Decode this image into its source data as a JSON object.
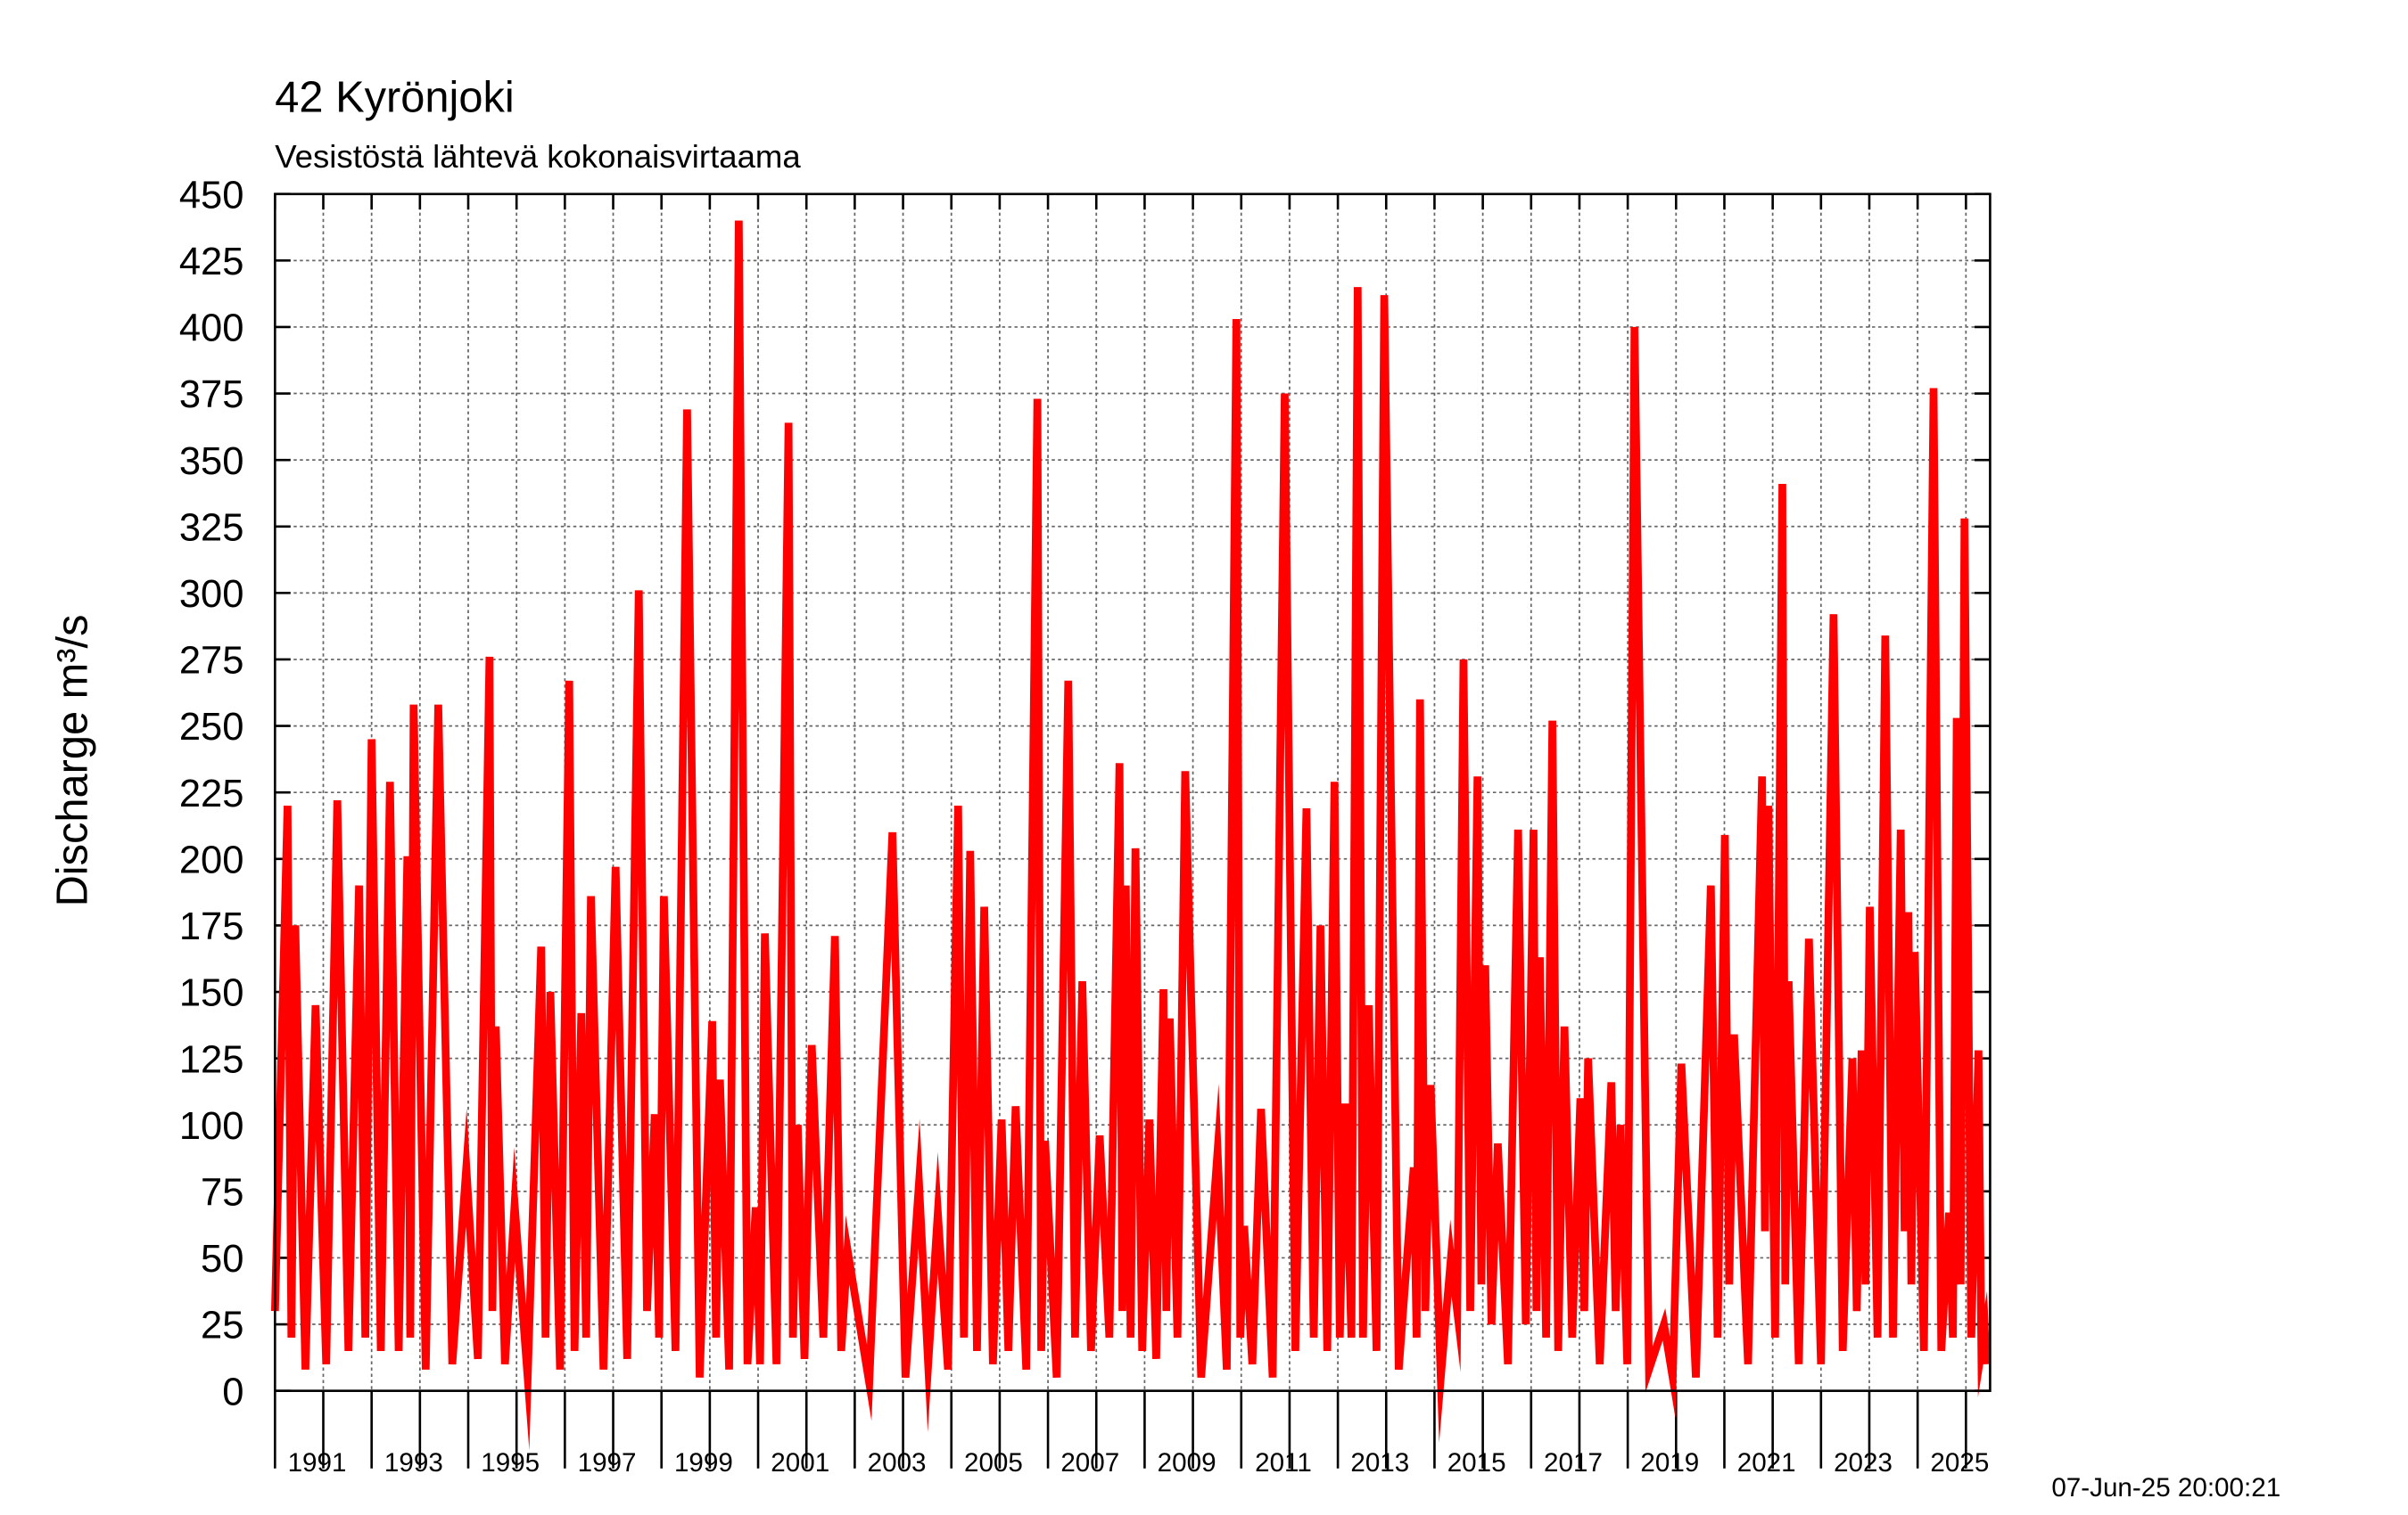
{
  "chart_data": {
    "type": "line",
    "title": "42 Kyrönjoki",
    "subtitle": "Vesistöstä lähtevä kokonaisvirtaama",
    "y_label": "Discharge m³/s",
    "timestamp": "07-Jun-25 20:00:21",
    "xlim": [
      1990,
      2025.5
    ],
    "ylim": [
      0,
      450
    ],
    "xticks": [
      1991,
      1993,
      1995,
      1997,
      1999,
      2001,
      2003,
      2005,
      2007,
      2009,
      2011,
      2013,
      2015,
      2017,
      2019,
      2021,
      2023,
      2025
    ],
    "xminor": [
      1990,
      1992,
      1994,
      1996,
      1998,
      2000,
      2002,
      2004,
      2006,
      2008,
      2010,
      2012,
      2014,
      2016,
      2018,
      2020,
      2022,
      2024
    ],
    "yticks": [
      0,
      25,
      50,
      75,
      100,
      125,
      150,
      175,
      200,
      225,
      250,
      275,
      300,
      325,
      350,
      375,
      400,
      425,
      450
    ],
    "grid": true,
    "x": [
      1990.0,
      1990.26,
      1990.34,
      1990.42,
      1990.63,
      1990.84,
      1991.06,
      1991.29,
      1991.52,
      1991.74,
      1991.87,
      1992.0,
      1992.19,
      1992.38,
      1992.56,
      1992.74,
      1992.8,
      1992.87,
      1993.12,
      1993.38,
      1993.67,
      1993.96,
      1994.2,
      1994.44,
      1994.5,
      1994.57,
      1994.76,
      1994.96,
      1995.23,
      1995.51,
      1995.6,
      1995.7,
      1995.9,
      1996.09,
      1996.2,
      1996.34,
      1996.44,
      1996.54,
      1996.8,
      1997.05,
      1997.29,
      1997.53,
      1997.7,
      1997.86,
      1997.95,
      1998.05,
      1998.29,
      1998.53,
      1998.79,
      1999.05,
      1999.13,
      1999.21,
      1999.4,
      1999.6,
      1999.78,
      1999.95,
      2000.04,
      2000.14,
      2000.38,
      2000.63,
      2000.72,
      2000.82,
      2000.96,
      2001.11,
      2001.35,
      2001.59,
      2001.72,
      2001.85,
      2002.3,
      2002.78,
      2003.05,
      2003.33,
      2003.52,
      2003.72,
      2003.93,
      2004.14,
      2004.26,
      2004.39,
      2004.53,
      2004.68,
      2004.86,
      2005.04,
      2005.18,
      2005.33,
      2005.55,
      2005.78,
      2005.86,
      2005.94,
      2006.18,
      2006.42,
      2006.56,
      2006.71,
      2006.89,
      2007.07,
      2007.27,
      2007.48,
      2007.54,
      2007.61,
      2007.71,
      2007.81,
      2007.95,
      2008.1,
      2008.24,
      2008.39,
      2008.45,
      2008.52,
      2008.68,
      2008.84,
      2009.17,
      2009.51,
      2009.7,
      2009.9,
      2009.98,
      2010.06,
      2010.23,
      2010.41,
      2010.65,
      2010.9,
      2011.12,
      2011.35,
      2011.5,
      2011.64,
      2011.78,
      2011.93,
      2012.04,
      2012.15,
      2012.28,
      2012.41,
      2012.52,
      2012.64,
      2012.8,
      2012.96,
      2013.26,
      2013.57,
      2013.63,
      2013.7,
      2013.81,
      2013.92,
      2014.13,
      2014.34,
      2014.47,
      2014.6,
      2014.74,
      2014.89,
      2014.97,
      2015.05,
      2015.18,
      2015.31,
      2015.52,
      2015.73,
      2015.89,
      2016.05,
      2016.11,
      2016.18,
      2016.31,
      2016.44,
      2016.56,
      2016.69,
      2016.85,
      2017.02,
      2017.1,
      2017.18,
      2017.42,
      2017.66,
      2017.75,
      2017.85,
      2017.99,
      2018.14,
      2018.44,
      2018.75,
      2018.93,
      2019.11,
      2019.41,
      2019.72,
      2019.86,
      2020.01,
      2020.1,
      2020.2,
      2020.49,
      2020.78,
      2020.84,
      2020.91,
      2021.05,
      2021.2,
      2021.26,
      2021.33,
      2021.54,
      2021.75,
      2022.0,
      2022.26,
      2022.45,
      2022.65,
      2022.74,
      2022.84,
      2022.92,
      2023.01,
      2023.17,
      2023.33,
      2023.49,
      2023.65,
      2023.73,
      2023.81,
      2023.87,
      2023.94,
      2024.13,
      2024.33,
      2024.49,
      2024.65,
      2024.73,
      2024.81,
      2024.89,
      2024.97,
      2025.11,
      2025.26,
      2025.32,
      2025.39,
      2025.42
    ],
    "series": [
      {
        "color": "#ff0000",
        "values": [
          30,
          220,
          20,
          175,
          8,
          145,
          10,
          222,
          15,
          190,
          20,
          245,
          15,
          229,
          15,
          201,
          20,
          258,
          8,
          258,
          10,
          84,
          12,
          276,
          30,
          137,
          10,
          70,
          5,
          167,
          20,
          150,
          8,
          267,
          15,
          142,
          20,
          186,
          8,
          197,
          12,
          301,
          30,
          104,
          20,
          186,
          15,
          369,
          5,
          139,
          20,
          117,
          8,
          440,
          10,
          69,
          10,
          172,
          10,
          364,
          20,
          100,
          12,
          130,
          20,
          171,
          15,
          53,
          3,
          210,
          5,
          78,
          10,
          67,
          8,
          220,
          20,
          203,
          15,
          182,
          10,
          102,
          15,
          107,
          8,
          373,
          15,
          94,
          5,
          267,
          20,
          154,
          15,
          96,
          20,
          236,
          30,
          190,
          20,
          204,
          15,
          102,
          12,
          151,
          30,
          140,
          20,
          233,
          5,
          90,
          8,
          403,
          20,
          62,
          10,
          106,
          5,
          375,
          15,
          219,
          20,
          175,
          15,
          229,
          20,
          108,
          20,
          415,
          20,
          145,
          15,
          412,
          8,
          84,
          20,
          260,
          30,
          115,
          5,
          50,
          30,
          275,
          30,
          231,
          40,
          160,
          25,
          93,
          10,
          211,
          25,
          211,
          30,
          163,
          20,
          252,
          15,
          137,
          20,
          110,
          30,
          125,
          10,
          116,
          30,
          100,
          10,
          400,
          8,
          25,
          5,
          123,
          5,
          190,
          20,
          209,
          40,
          134,
          10,
          231,
          60,
          220,
          20,
          341,
          40,
          154,
          10,
          170,
          10,
          292,
          15,
          125,
          30,
          128,
          40,
          182,
          20,
          284,
          20,
          211,
          60,
          180,
          40,
          165,
          15,
          377,
          15,
          67,
          20,
          253,
          40,
          328,
          20,
          128,
          15,
          23,
          10
        ]
      }
    ]
  }
}
